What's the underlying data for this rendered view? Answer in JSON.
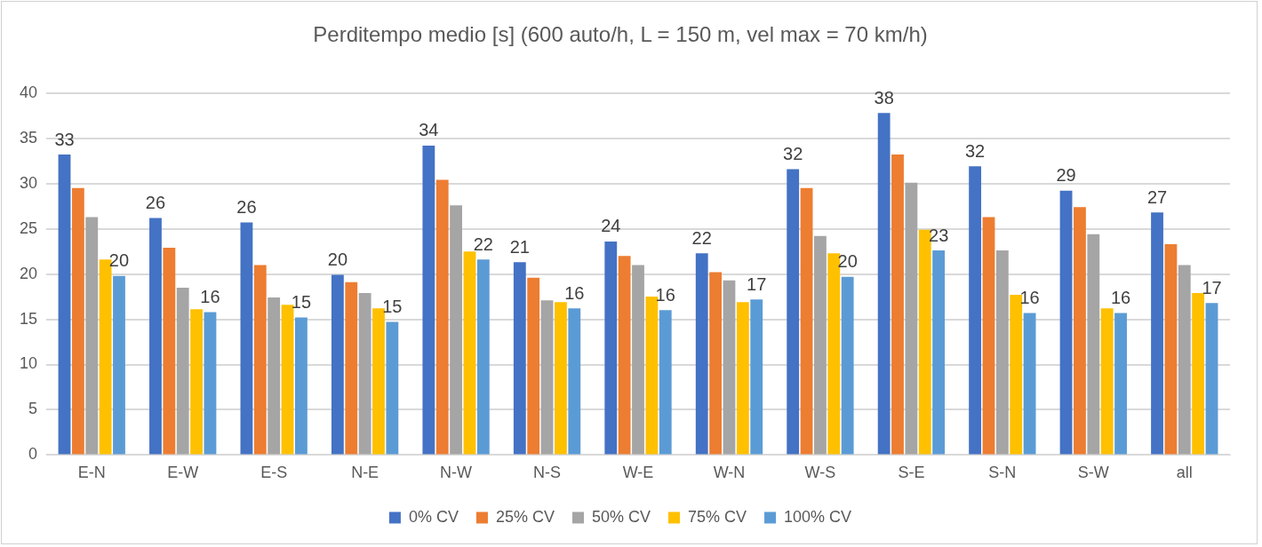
{
  "chart_data": {
    "type": "bar",
    "title": "Perditempo medio [s] (600 auto/h, L = 150 m, vel max = 70 km/h)",
    "categories": [
      "E-N",
      "E-W",
      "E-S",
      "N-E",
      "N-W",
      "N-S",
      "W-E",
      "W-N",
      "W-S",
      "S-E",
      "S-N",
      "S-W",
      "all"
    ],
    "series": [
      {
        "name": "0% CV",
        "color": "#4472c4",
        "values": [
          33.2,
          26.2,
          25.7,
          19.9,
          34.2,
          21.3,
          23.6,
          22.3,
          31.6,
          37.8,
          31.9,
          29.2,
          26.8
        ],
        "value_labels": [
          "33",
          "26",
          "26",
          "20",
          "34",
          "21",
          "24",
          "22",
          "32",
          "38",
          "32",
          "29",
          "27"
        ]
      },
      {
        "name": "25% CV",
        "color": "#ed7d31",
        "values": [
          29.5,
          22.9,
          21.0,
          19.1,
          30.4,
          19.6,
          22.0,
          20.2,
          29.5,
          33.2,
          26.3,
          27.4,
          23.3
        ]
      },
      {
        "name": "50% CV",
        "color": "#a5a5a5",
        "values": [
          26.3,
          18.5,
          17.4,
          17.9,
          27.6,
          17.1,
          21.0,
          19.3,
          24.2,
          30.1,
          22.6,
          24.4,
          21.0
        ]
      },
      {
        "name": "75% CV",
        "color": "#ffc000",
        "values": [
          21.6,
          16.1,
          16.6,
          16.2,
          22.5,
          16.9,
          17.5,
          16.9,
          22.3,
          24.9,
          17.7,
          16.2,
          17.9
        ]
      },
      {
        "name": "100% CV",
        "color": "#5b9bd5",
        "values": [
          19.8,
          15.8,
          15.2,
          14.7,
          21.6,
          16.2,
          16.0,
          17.2,
          19.7,
          22.6,
          15.7,
          15.7,
          16.8
        ],
        "value_labels": [
          "20",
          "16",
          "15",
          "15",
          "22",
          "16",
          "16",
          "17",
          "20",
          "23",
          "16",
          "16",
          "17"
        ]
      }
    ],
    "ylim": [
      0,
      40
    ],
    "yticks": [
      0,
      5,
      10,
      15,
      20,
      25,
      30,
      35,
      40
    ],
    "grid": "y",
    "legend": "bottom"
  }
}
